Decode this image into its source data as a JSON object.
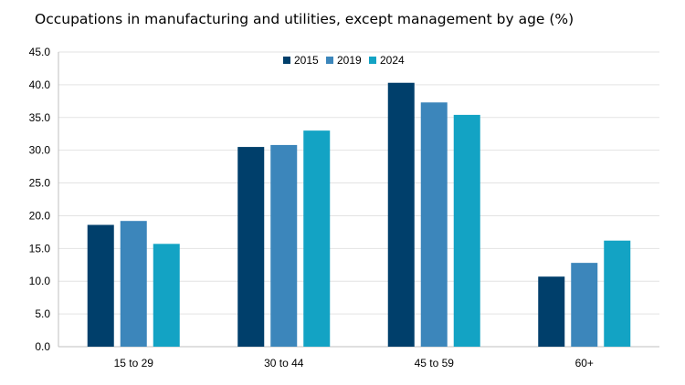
{
  "chart_data": {
    "type": "bar",
    "title": "Occupations in manufacturing and utilities, except management by age (%)",
    "xlabel": "",
    "ylabel": "",
    "categories": [
      "15 to 29",
      "30 to 44",
      "45 to 59",
      "60+"
    ],
    "series": [
      {
        "name": "2015",
        "color": "#003f6b",
        "values": [
          18.6,
          30.5,
          40.3,
          10.7
        ]
      },
      {
        "name": "2019",
        "color": "#3c86bb",
        "values": [
          19.2,
          30.8,
          37.3,
          12.8
        ]
      },
      {
        "name": "2024",
        "color": "#13a3c4",
        "values": [
          15.7,
          33.0,
          35.4,
          16.2
        ]
      }
    ],
    "ylim": [
      0,
      45
    ],
    "yticks": [
      "0.0",
      "5.0",
      "10.0",
      "15.0",
      "20.0",
      "25.0",
      "30.0",
      "35.0",
      "40.0",
      "45.0"
    ],
    "grid": true,
    "legend_position": "top-center"
  }
}
